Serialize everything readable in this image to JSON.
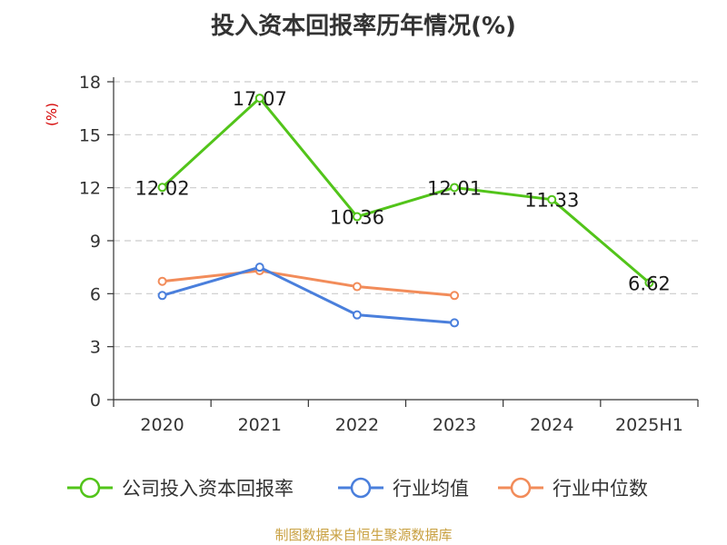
{
  "title": "投入资本回报率历年情况(%)",
  "source": "制图数据来自恒生聚源数据库",
  "chart_data": {
    "type": "line",
    "title": "投入资本回报率历年情况(%)",
    "ylabel": "(%)",
    "xlabel": "",
    "categories": [
      "2020",
      "2021",
      "2022",
      "2023",
      "2024",
      "2025H1"
    ],
    "ylim": [
      0,
      18
    ],
    "yticks": [
      0,
      3,
      6,
      9,
      12,
      15,
      18
    ],
    "grid": true,
    "legend_position": "bottom",
    "series": [
      {
        "name": "公司投入资本回报率",
        "color": "#52c41a",
        "values": [
          12.02,
          17.07,
          10.36,
          12.01,
          11.33,
          6.62
        ],
        "labels": [
          "12.02",
          "17.07",
          "10.36",
          "12.01",
          "11.33",
          "6.62"
        ]
      },
      {
        "name": "行业均值",
        "color": "#4a7fdc",
        "values": [
          5.9,
          7.5,
          4.8,
          4.35,
          null,
          null
        ]
      },
      {
        "name": "行业中位数",
        "color": "#f28c5a",
        "values": [
          6.7,
          7.3,
          6.4,
          5.9,
          null,
          null
        ]
      }
    ]
  }
}
